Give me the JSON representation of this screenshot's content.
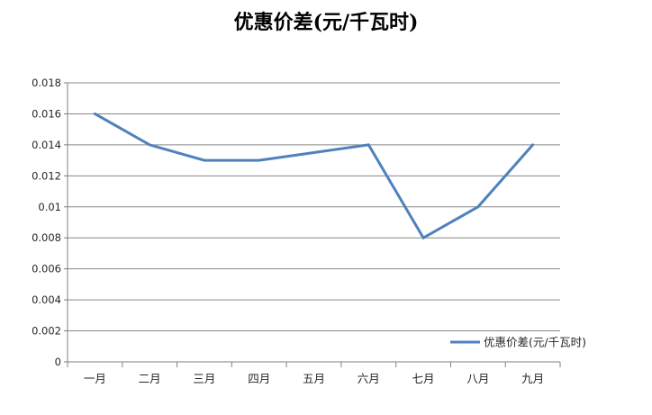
{
  "chart_data": {
    "type": "line",
    "title": "优惠价差(元/千瓦时)",
    "categories": [
      "一月",
      "二月",
      "三月",
      "四月",
      "五月",
      "六月",
      "七月",
      "八月",
      "九月"
    ],
    "series": [
      {
        "name": "优惠价差(元/千瓦时)",
        "values": [
          0.016,
          0.014,
          0.013,
          0.013,
          0.0135,
          0.014,
          0.008,
          0.01,
          0.014
        ]
      }
    ],
    "xlabel": "",
    "ylabel": "",
    "ylim": [
      0,
      0.018
    ],
    "ytick_interval": 0.002,
    "ytick_labels": [
      "0",
      "0.002",
      "0.004",
      "0.006",
      "0.008",
      "0.01",
      "0.012",
      "0.014",
      "0.016",
      "0.018"
    ],
    "grid": true,
    "legend": {
      "position": "inside-bottom-right",
      "label": "优惠价差(元/千瓦时)"
    },
    "colors": {
      "line": "#4F81BD",
      "gridline": "#878787",
      "axis": "#808080",
      "tick_text": "#262626",
      "title_text": "#000000",
      "background": "#ffffff"
    }
  }
}
